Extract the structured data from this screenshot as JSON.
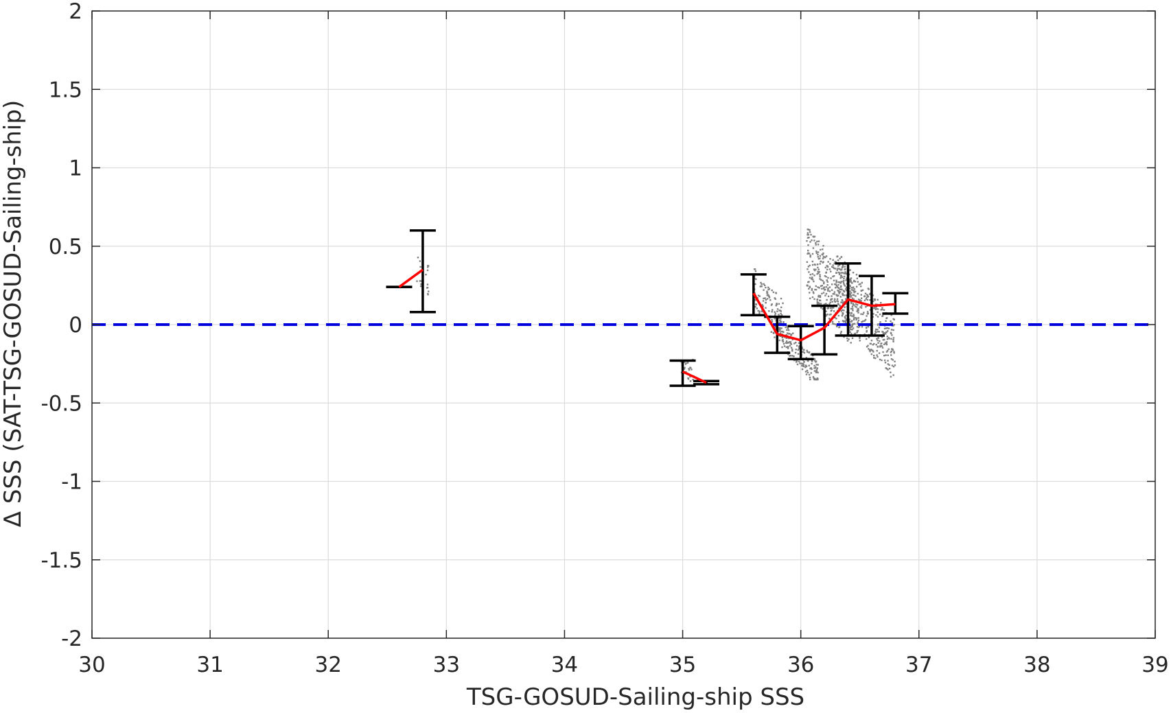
{
  "chart_data": {
    "type": "scatter",
    "title": "",
    "xlabel": "TSG-GOSUD-Sailing-ship SSS",
    "ylabel": "Δ SSS (SAT-TSG-GOSUD-Sailing-ship)",
    "xlim": [
      30,
      39
    ],
    "ylim": [
      -2,
      2
    ],
    "x_ticks": [
      30,
      31,
      32,
      33,
      34,
      35,
      36,
      37,
      38,
      39
    ],
    "x_tick_labels": [
      "30",
      "31",
      "32",
      "33",
      "34",
      "35",
      "36",
      "37",
      "38",
      "39"
    ],
    "y_ticks": [
      -2,
      -1.5,
      -1,
      -0.5,
      0,
      0.5,
      1,
      1.5,
      2
    ],
    "y_tick_labels": [
      "-2",
      "-1.5",
      "-1",
      "-0.5",
      "0",
      "0.5",
      "1",
      "1.5",
      "2"
    ],
    "grid": true,
    "legend": "none",
    "colors": {
      "scatter": "#808080",
      "mean_line": "#ff0000",
      "error_bars": "#000000",
      "zero_line": "#0000dd",
      "grid": "#dcdcdc",
      "axes": "#262626"
    },
    "reference_line": {
      "y": 0,
      "style": "dashed",
      "color": "#0000dd"
    },
    "scatter_clusters": [
      {
        "x_range": [
          32.75,
          32.85
        ],
        "y_range": [
          0.1,
          0.55
        ],
        "slope": -2.5,
        "n": 20
      },
      {
        "x_range": [
          34.98,
          35.1
        ],
        "y_range": [
          -0.45,
          -0.1
        ],
        "slope": -1.5,
        "n": 30
      },
      {
        "x_range": [
          35.6,
          35.85
        ],
        "y_range": [
          -0.15,
          0.42
        ],
        "slope": -2.5,
        "n": 120
      },
      {
        "x_range": [
          35.75,
          36.15
        ],
        "y_range": [
          -0.35,
          0.05
        ],
        "slope": -2.5,
        "n": 220
      },
      {
        "x_range": [
          36.05,
          36.45
        ],
        "y_range": [
          -0.25,
          0.72
        ],
        "slope": -2.5,
        "n": 380
      },
      {
        "x_range": [
          36.3,
          36.8
        ],
        "y_range": [
          -0.4,
          0.5
        ],
        "slope": -2.5,
        "n": 420
      }
    ],
    "bin_means": {
      "x": [
        32.6,
        32.8
      ],
      "y": [
        0.24,
        0.35
      ]
    },
    "bin_means_2": {
      "x": [
        35.0,
        35.2
      ],
      "y": [
        -0.3,
        -0.37
      ]
    },
    "bin_means_3": {
      "x": [
        35.6,
        35.8,
        36.0,
        36.2,
        36.4,
        36.6,
        36.8
      ],
      "y": [
        0.2,
        -0.06,
        -0.1,
        -0.02,
        0.16,
        0.12,
        0.13
      ]
    },
    "error_bars": [
      {
        "x": 32.6,
        "low": 0.24,
        "high": 0.24
      },
      {
        "x": 32.8,
        "low": 0.08,
        "high": 0.6
      },
      {
        "x": 35.0,
        "low": -0.39,
        "high": -0.23
      },
      {
        "x": 35.2,
        "low": -0.38,
        "high": -0.36
      },
      {
        "x": 35.6,
        "low": 0.06,
        "high": 0.32
      },
      {
        "x": 35.8,
        "low": -0.18,
        "high": 0.05
      },
      {
        "x": 36.0,
        "low": -0.22,
        "high": -0.01
      },
      {
        "x": 36.2,
        "low": -0.19,
        "high": 0.12
      },
      {
        "x": 36.4,
        "low": -0.07,
        "high": 0.39
      },
      {
        "x": 36.6,
        "low": -0.07,
        "high": 0.31
      },
      {
        "x": 36.8,
        "low": 0.07,
        "high": 0.2
      }
    ]
  }
}
